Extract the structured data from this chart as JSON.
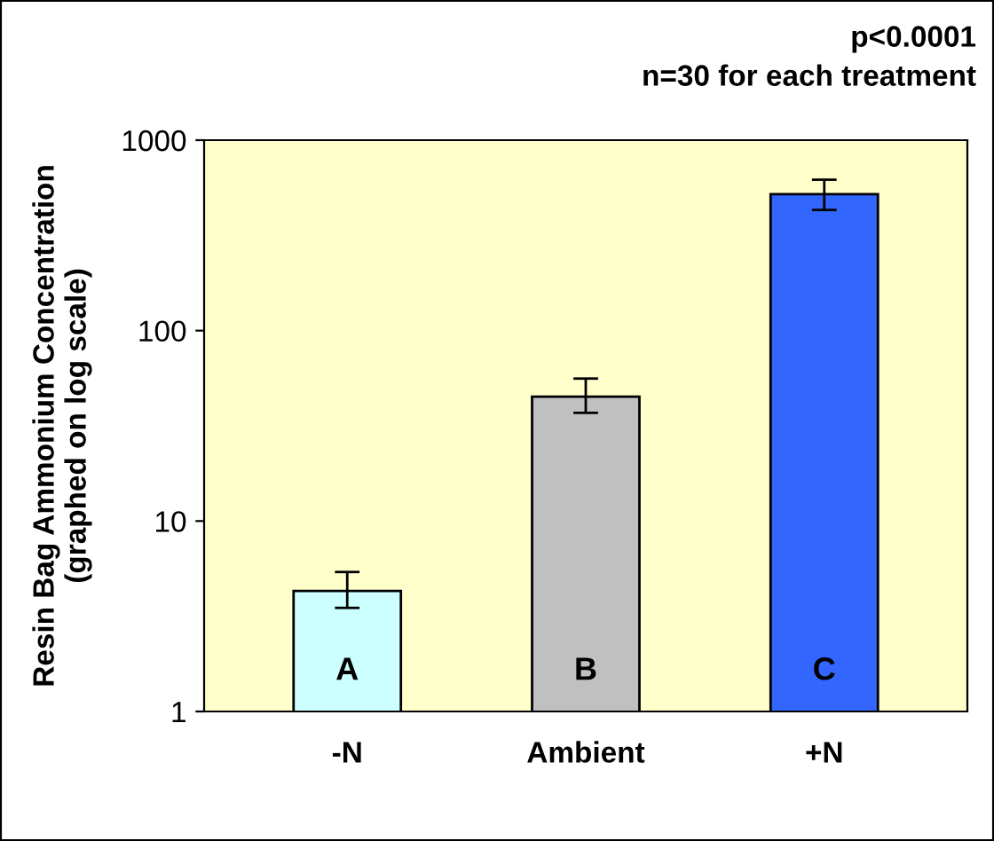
{
  "chart_data": {
    "type": "bar",
    "ylabel": "Resin Bag Ammonium Concentration\n(graphed on log scale)",
    "categories": [
      "-N",
      "Ambient",
      "+N"
    ],
    "values": [
      4.3,
      45,
      520
    ],
    "colors": [
      "#ccffff",
      "#c0c0c0",
      "#3366ff"
    ],
    "errors": [
      [
        3.5,
        5.4
      ],
      [
        37,
        56
      ],
      [
        430,
        620
      ]
    ],
    "log": "y",
    "ylim": [
      1,
      1000
    ],
    "yticks": [
      1,
      10,
      100,
      1000
    ],
    "grid": false,
    "legend": false,
    "annotations": [
      "A",
      "B",
      "C",
      "p<0.0001",
      "n=30 for each treatment"
    ]
  }
}
